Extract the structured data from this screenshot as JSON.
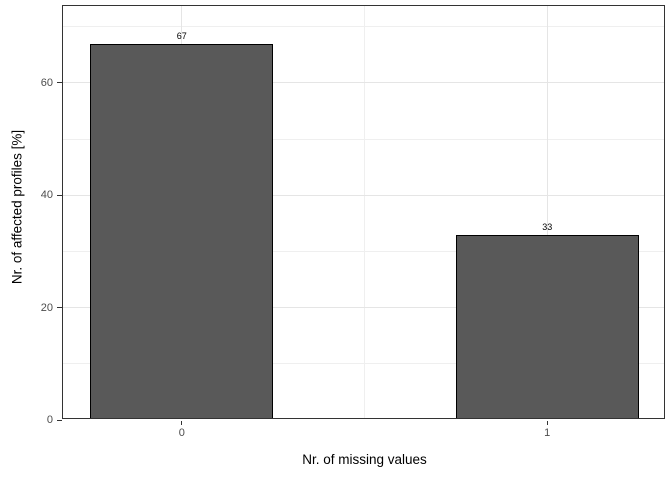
{
  "chart_data": {
    "type": "bar",
    "xlabel": "Nr. of missing values",
    "ylabel": "Nr. of affected profiles [%]",
    "categories": [
      "0",
      "1"
    ],
    "values": [
      67,
      33
    ],
    "bar_value_labels": [
      "67",
      "33"
    ],
    "x_positions": [
      0,
      1
    ],
    "bar_width": 0.5,
    "xlim": [
      -0.325,
      1.325
    ],
    "ylim": [
      0,
      73.7
    ],
    "y_ticks": [
      0,
      20,
      40,
      60
    ],
    "y_minor_gridlines": [
      10,
      30,
      50,
      70
    ],
    "x_major_gridlines": [
      0,
      1
    ],
    "x_minor_gridlines": [
      0.5
    ],
    "grid": true,
    "legend": "none",
    "colors": {
      "bar_fill": "#595959",
      "bar_border": "#000000",
      "panel_border": "#333333",
      "grid_major": "#E5E5E5",
      "grid_minor": "#EFEFEF",
      "tick_mark": "#333333",
      "tick_label": "#4D4D4D",
      "axis_title": "#000000",
      "bar_label": "#000000",
      "background": "#FFFFFF"
    }
  }
}
